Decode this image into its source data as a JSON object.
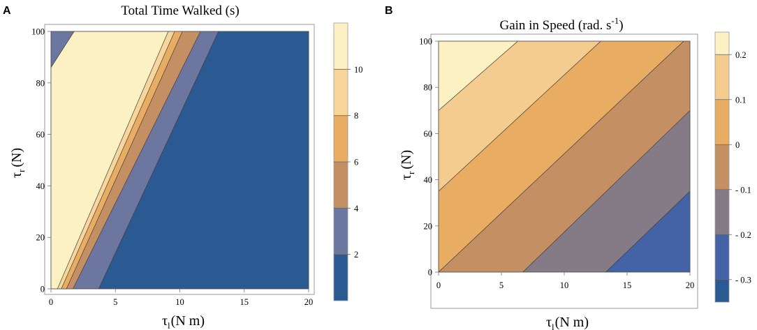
{
  "figure": {
    "panels": [
      {
        "letter": "A"
      },
      {
        "letter": "B"
      }
    ]
  },
  "chart_data": [
    {
      "type": "contour",
      "title": "Total Time Walked (s)",
      "xlabel": "τl (N m)",
      "xlabel_main": "τ",
      "xlabel_sub": "l",
      "xlabel_unit": "(N m)",
      "ylabel": "τr (N)",
      "ylabel_main": "τ",
      "ylabel_sub": "r",
      "ylabel_unit": "(N)",
      "xlim": [
        0,
        20
      ],
      "ylim": [
        0,
        100
      ],
      "xticks": [
        "0",
        "5",
        "10",
        "15",
        "20"
      ],
      "yticks": [
        "0",
        "20",
        "40",
        "60",
        "80",
        "100"
      ],
      "colorbar": {
        "levels": [
          0,
          2,
          4,
          6,
          8,
          10,
          12
        ],
        "tick_labels": [
          "2",
          "4",
          "6",
          "8",
          "10"
        ],
        "colors": [
          "#2b5a93",
          "#6c769f",
          "#c49063",
          "#e8ad63",
          "#f8d69b",
          "#fbf1c2"
        ]
      },
      "regions": [
        {
          "range": "0-2 s",
          "color": "#2b5a93",
          "polygon": [
            [
              3.7,
              0
            ],
            [
              20,
              0
            ],
            [
              20,
              100
            ],
            [
              13,
              100
            ]
          ]
        },
        {
          "range": "2-4 s",
          "color": "#6c769f",
          "polygon": [
            [
              1.7,
              0
            ],
            [
              3.7,
              0
            ],
            [
              13,
              100
            ],
            [
              11.6,
              100
            ]
          ]
        },
        {
          "range": "4-6 s",
          "color": "#c49063",
          "polygon": [
            [
              1.2,
              0
            ],
            [
              1.7,
              0
            ],
            [
              11.6,
              100
            ],
            [
              10.2,
              100
            ]
          ]
        },
        {
          "range": "6-8 s",
          "color": "#e8ad63",
          "polygon": [
            [
              0.8,
              0
            ],
            [
              1.2,
              0
            ],
            [
              10.2,
              100
            ],
            [
              9.6,
              100
            ]
          ]
        },
        {
          "range": "8-10 s",
          "color": "#f8d69b",
          "polygon": [
            [
              0.5,
              0
            ],
            [
              0.8,
              0
            ],
            [
              9.6,
              100
            ],
            [
              9.1,
              100
            ]
          ]
        },
        {
          "range": "10-12 s",
          "color": "#fbf1c2",
          "polygon": [
            [
              0,
              0
            ],
            [
              0.5,
              0
            ],
            [
              9.1,
              100
            ],
            [
              1.8,
              100
            ],
            [
              0,
              86
            ]
          ]
        },
        {
          "range": "2-4 s corner",
          "color": "#6c769f",
          "polygon": [
            [
              0,
              86
            ],
            [
              0,
              100
            ],
            [
              1.8,
              100
            ]
          ]
        }
      ]
    },
    {
      "type": "contour",
      "title": "Gain in Speed (rad. s",
      "title_sup": "-1",
      "title_end": ")",
      "xlabel": "τl (N m)",
      "xlabel_main": "τ",
      "xlabel_sub": "l",
      "xlabel_unit": "(N m)",
      "ylabel": "τr (N)",
      "ylabel_main": "τ",
      "ylabel_sub": "r",
      "ylabel_unit": "(N)",
      "xlim": [
        0,
        20
      ],
      "ylim": [
        0,
        100
      ],
      "xticks": [
        "0",
        "5",
        "10",
        "15",
        "20"
      ],
      "yticks": [
        "0",
        "20",
        "40",
        "60",
        "80",
        "100"
      ],
      "colorbar": {
        "levels": [
          -0.35,
          -0.3,
          -0.2,
          -0.1,
          0,
          0.1,
          0.2,
          0.25
        ],
        "tick_labels": [
          "- 0.3",
          "- 0.2",
          "- 0.1",
          "0",
          "0.1",
          "0.2"
        ],
        "colors": [
          "#2b5a93",
          "#4462a6",
          "#857b87",
          "#c49063",
          "#e8ad63",
          "#f5cc8f",
          "#fbf1c2"
        ]
      },
      "regions": [
        {
          "range": "-0.3 to -0.2",
          "color": "#4462a6",
          "polygon": [
            [
              13.3,
              0
            ],
            [
              20,
              0
            ],
            [
              20,
              35
            ]
          ]
        },
        {
          "range": "-0.2 to -0.1",
          "color": "#857b87",
          "polygon": [
            [
              6.7,
              0
            ],
            [
              13.3,
              0
            ],
            [
              20,
              35
            ],
            [
              20,
              70
            ]
          ]
        },
        {
          "range": "-0.1 to 0",
          "color": "#c49063",
          "polygon": [
            [
              0,
              0
            ],
            [
              6.7,
              0
            ],
            [
              20,
              70
            ],
            [
              20,
              100
            ],
            [
              19.5,
              100
            ]
          ]
        },
        {
          "range": "0 to 0.1",
          "color": "#e8ad63",
          "polygon": [
            [
              0,
              0
            ],
            [
              19.5,
              100
            ],
            [
              12.9,
              100
            ],
            [
              0,
              35
            ]
          ]
        },
        {
          "range": "0.1 to 0.2",
          "color": "#f5cc8f",
          "polygon": [
            [
              0,
              35
            ],
            [
              12.9,
              100
            ],
            [
              6.3,
              100
            ],
            [
              0,
              70
            ]
          ]
        },
        {
          "range": "0.2 to 0.25",
          "color": "#fbf1c2",
          "polygon": [
            [
              0,
              70
            ],
            [
              6.3,
              100
            ],
            [
              0,
              100
            ]
          ]
        }
      ]
    }
  ]
}
